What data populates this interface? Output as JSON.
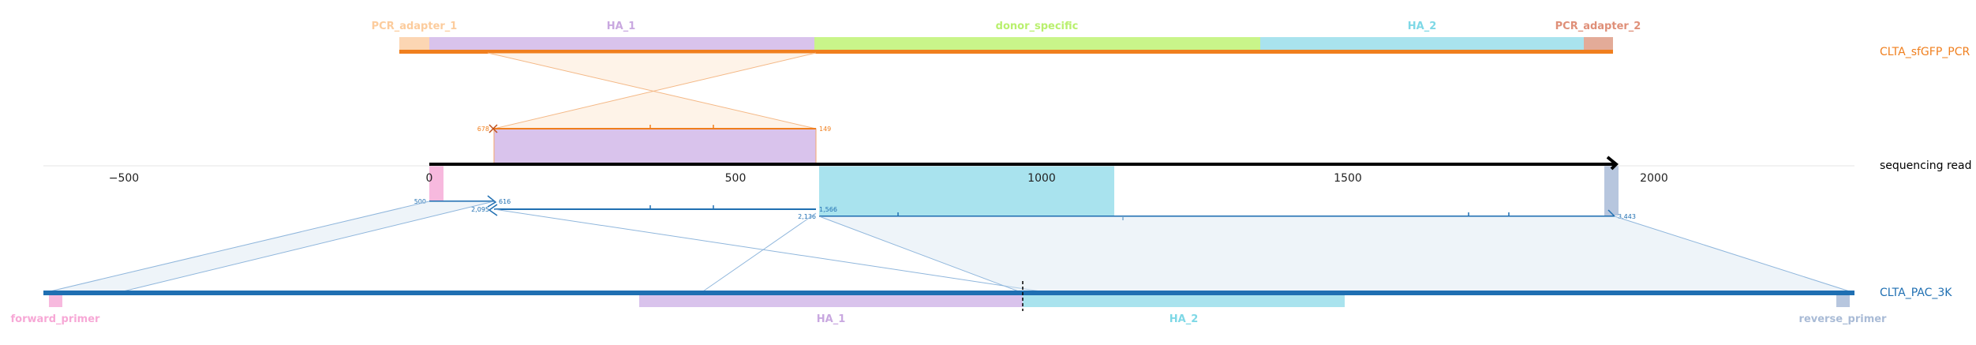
{
  "top_reference": {
    "name": "CLTA_sfGFP_PCR",
    "color": "#f07f1e",
    "features": [
      {
        "name": "PCR_adapter_1",
        "color": "#fccc9d"
      },
      {
        "name": "HA_1",
        "color": "#c9a8e0"
      },
      {
        "name": "donor_specific",
        "color": "#b9f06e"
      },
      {
        "name": "HA_2",
        "color": "#7ed8e6"
      },
      {
        "name": "PCR_adapter_2",
        "color": "#df8f78"
      }
    ],
    "alignment_labels": {
      "start": "678",
      "end": "149"
    }
  },
  "read": {
    "name": "sequencing read",
    "axis_ticks": [
      "−500",
      "0",
      "500",
      "1000",
      "1500",
      "2000"
    ],
    "alignment_labels": {
      "a_start": "500",
      "a_end": "616",
      "b_start": "2,095",
      "b_end": "1,566",
      "c_start": "2,136",
      "c_end": "3,443"
    }
  },
  "bottom_reference": {
    "name": "CLTA_PAC_3K",
    "color": "#1f6fb2",
    "features": [
      {
        "name": "forward_primer",
        "color": "#f7a8d6"
      },
      {
        "name": "HA_1",
        "color": "#c9a8e0"
      },
      {
        "name": "HA_2",
        "color": "#7ed8e6"
      },
      {
        "name": "reverse_primer",
        "color": "#a9bbd6"
      }
    ]
  }
}
